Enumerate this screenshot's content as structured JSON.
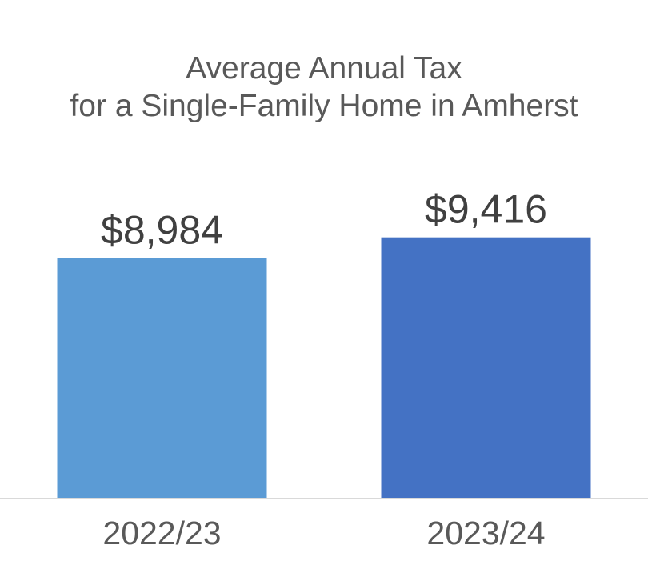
{
  "chart_data": {
    "type": "bar",
    "title_lines": [
      "Average Annual Tax",
      "for a Single-Family Home in Amherst"
    ],
    "categories": [
      "2022/23",
      "2023/24"
    ],
    "values": [
      8984,
      9416
    ],
    "value_labels": [
      "$8,984",
      "$9,416"
    ],
    "bar_colors": [
      "#5b9bd5",
      "#4472c4"
    ],
    "axis_color": "#d9d9d9",
    "xlabel": "",
    "ylabel": "",
    "grid": false,
    "legend": "none"
  }
}
